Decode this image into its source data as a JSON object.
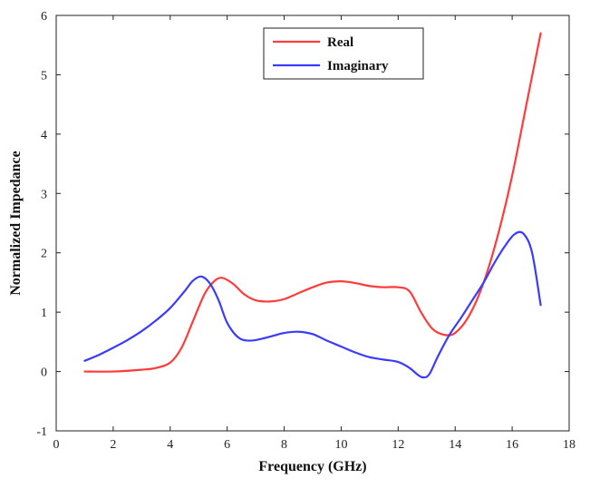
{
  "chart_data": {
    "type": "line",
    "title": "",
    "xlabel": "Frequency (GHz)",
    "ylabel": "Normalized Impedance",
    "xlim": [
      0,
      18
    ],
    "ylim": [
      -1,
      6
    ],
    "xticks": [
      0,
      2,
      4,
      6,
      8,
      10,
      12,
      14,
      16,
      18
    ],
    "yticks": [
      -1,
      0,
      1,
      2,
      3,
      4,
      5,
      6
    ],
    "grid": false,
    "legend_position": "top-center",
    "series": [
      {
        "name": "Real",
        "color": "#ff3b3b",
        "x": [
          1,
          2,
          3,
          3.5,
          4,
          4.4,
          4.8,
          5.2,
          5.5,
          5.8,
          6.2,
          6.6,
          7,
          7.5,
          8,
          8.5,
          9,
          9.5,
          10,
          10.5,
          11,
          11.5,
          12,
          12.4,
          12.8,
          13.2,
          13.6,
          14,
          14.5,
          15,
          15.5,
          16,
          16.5,
          17
        ],
        "y": [
          0.0,
          0.0,
          0.03,
          0.06,
          0.15,
          0.4,
          0.85,
          1.3,
          1.5,
          1.58,
          1.48,
          1.3,
          1.2,
          1.18,
          1.22,
          1.32,
          1.42,
          1.5,
          1.52,
          1.49,
          1.44,
          1.42,
          1.42,
          1.35,
          1.0,
          0.72,
          0.62,
          0.65,
          0.95,
          1.5,
          2.3,
          3.3,
          4.5,
          5.7
        ]
      },
      {
        "name": "Imaginary",
        "color": "#3b3bff",
        "x": [
          1,
          1.5,
          2,
          2.5,
          3,
          3.5,
          4,
          4.5,
          4.8,
          5.1,
          5.4,
          5.7,
          6,
          6.4,
          6.8,
          7.2,
          7.6,
          8,
          8.5,
          9,
          9.5,
          10,
          10.5,
          11,
          11.5,
          12,
          12.4,
          12.7,
          12.9,
          13.1,
          13.4,
          13.8,
          14.2,
          14.6,
          15,
          15.4,
          15.8,
          16.1,
          16.4,
          16.7,
          17
        ],
        "y": [
          0.18,
          0.28,
          0.4,
          0.53,
          0.68,
          0.86,
          1.07,
          1.35,
          1.53,
          1.6,
          1.48,
          1.2,
          0.82,
          0.57,
          0.52,
          0.55,
          0.6,
          0.65,
          0.67,
          0.63,
          0.52,
          0.42,
          0.32,
          0.24,
          0.2,
          0.16,
          0.06,
          -0.06,
          -0.1,
          -0.04,
          0.26,
          0.62,
          0.9,
          1.2,
          1.5,
          1.85,
          2.15,
          2.32,
          2.32,
          2.0,
          1.12
        ]
      }
    ]
  }
}
